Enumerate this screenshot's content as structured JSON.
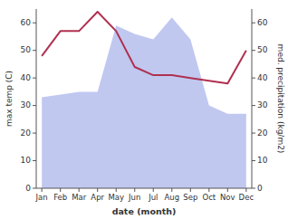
{
  "chart_data": {
    "type": "line",
    "x_label": "date (month)",
    "y_label": "max temp (C)",
    "y2_label": "med. precipitation (kg/m2)",
    "categories": [
      "Jan",
      "Feb",
      "Mar",
      "Apr",
      "May",
      "Jun",
      "Jul",
      "Aug",
      "Sep",
      "Oct",
      "Nov",
      "Dec"
    ],
    "series": [
      {
        "type": "area",
        "axis": "y2",
        "color": "#c0c8f0",
        "values": [
          33,
          34,
          35,
          35,
          59,
          56,
          54,
          62,
          54,
          30,
          27,
          27
        ]
      },
      {
        "type": "line",
        "color": "#b03050",
        "values": [
          48,
          57,
          57,
          64,
          57,
          44,
          41,
          41,
          40,
          39,
          38,
          50
        ]
      }
    ],
    "ylim": [
      0,
      65
    ],
    "yticks": [
      0,
      10,
      20,
      30,
      40,
      50,
      60
    ],
    "y2lim": [
      0,
      65
    ],
    "y2ticks": [
      0,
      10,
      20,
      30,
      40,
      50,
      60
    ],
    "grid": false
  }
}
